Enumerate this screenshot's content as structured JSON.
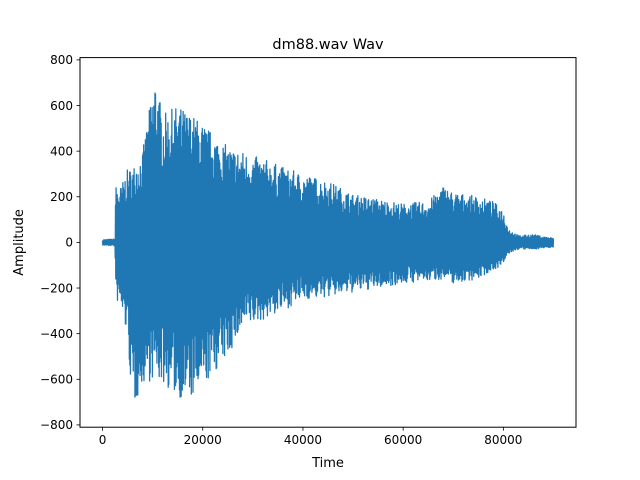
{
  "chart_data": {
    "type": "line",
    "title": "dm88.wav Wav",
    "xlabel": "Time",
    "ylabel": "Amplitude",
    "xlim": [
      -4500,
      94500
    ],
    "ylim": [
      -810,
      810
    ],
    "x_ticks": [
      0,
      20000,
      40000,
      60000,
      80000
    ],
    "x_tick_labels": [
      "0",
      "20000",
      "40000",
      "60000",
      "80000"
    ],
    "y_ticks": [
      -800,
      -600,
      -400,
      -200,
      0,
      200,
      400,
      600,
      800
    ],
    "y_tick_labels": [
      "−800",
      "−600",
      "−400",
      "−200",
      "0",
      "200",
      "400",
      "600",
      "800"
    ],
    "grid": false,
    "line_color": "#1f77b4",
    "series": [
      {
        "samples": 90000,
        "x_range": [
          0,
          90000
        ],
        "envelope_upper": [
          [
            0,
            12
          ],
          [
            2500,
            15
          ],
          [
            2600,
            250
          ],
          [
            3500,
            240
          ],
          [
            5000,
            320
          ],
          [
            6000,
            330
          ],
          [
            8000,
            400
          ],
          [
            10500,
            740
          ],
          [
            12000,
            560
          ],
          [
            15000,
            600
          ],
          [
            18000,
            560
          ],
          [
            20000,
            520
          ],
          [
            22000,
            480
          ],
          [
            25000,
            420
          ],
          [
            28000,
            400
          ],
          [
            30000,
            380
          ],
          [
            33000,
            360
          ],
          [
            36000,
            330
          ],
          [
            40000,
            300
          ],
          [
            45000,
            270
          ],
          [
            50000,
            210
          ],
          [
            55000,
            190
          ],
          [
            60000,
            170
          ],
          [
            65000,
            180
          ],
          [
            68000,
            250
          ],
          [
            70000,
            220
          ],
          [
            75000,
            200
          ],
          [
            78000,
            180
          ],
          [
            80000,
            140
          ],
          [
            81000,
            60
          ],
          [
            83000,
            30
          ],
          [
            86000,
            35
          ],
          [
            88000,
            25
          ],
          [
            90000,
            20
          ]
        ],
        "envelope_lower": [
          [
            0,
            -12
          ],
          [
            2500,
            -15
          ],
          [
            2600,
            -250
          ],
          [
            3500,
            -280
          ],
          [
            5000,
            -420
          ],
          [
            6000,
            -740
          ],
          [
            8000,
            -620
          ],
          [
            10500,
            -600
          ],
          [
            12000,
            -620
          ],
          [
            15000,
            -680
          ],
          [
            18000,
            -690
          ],
          [
            20000,
            -640
          ],
          [
            22000,
            -580
          ],
          [
            25000,
            -500
          ],
          [
            28000,
            -380
          ],
          [
            30000,
            -360
          ],
          [
            33000,
            -330
          ],
          [
            36000,
            -300
          ],
          [
            40000,
            -250
          ],
          [
            45000,
            -240
          ],
          [
            50000,
            -220
          ],
          [
            55000,
            -200
          ],
          [
            60000,
            -180
          ],
          [
            65000,
            -170
          ],
          [
            68000,
            -160
          ],
          [
            70000,
            -180
          ],
          [
            75000,
            -160
          ],
          [
            78000,
            -120
          ],
          [
            80000,
            -100
          ],
          [
            81000,
            -50
          ],
          [
            83000,
            -30
          ],
          [
            86000,
            -30
          ],
          [
            88000,
            -25
          ],
          [
            90000,
            -20
          ]
        ]
      }
    ]
  }
}
